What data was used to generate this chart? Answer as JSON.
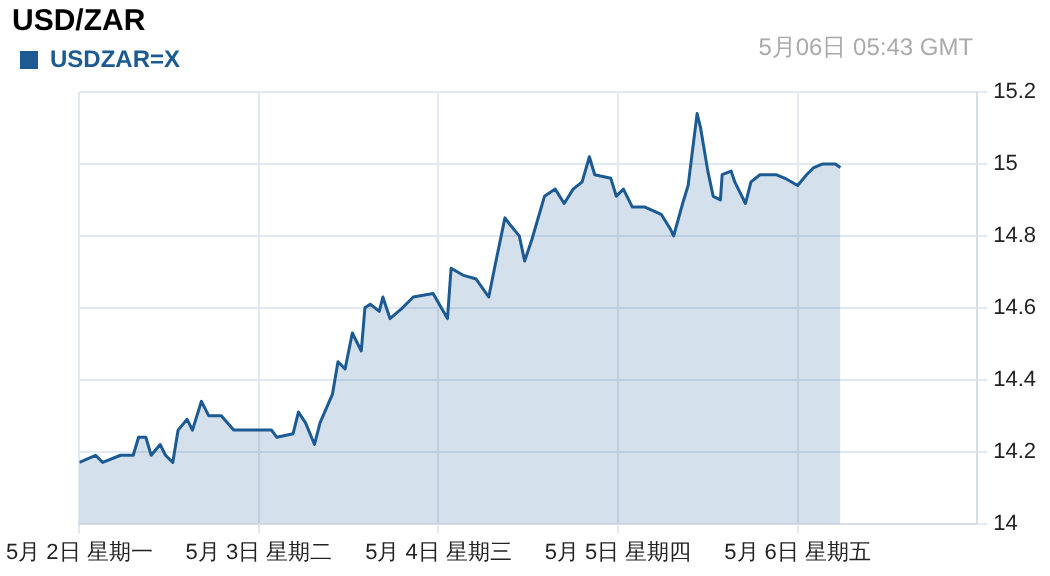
{
  "chart_data": {
    "type": "area",
    "title": "USD/ZAR",
    "annotations": [
      "5月06日 05:43 GMT"
    ],
    "x": [
      "--05-02T00:00",
      "--05-02T02:10",
      "--05-02T03:07",
      "--05-02T05:31",
      "--05-02T07:12",
      "--05-02T07:55",
      "--05-02T08:53",
      "--05-02T09:36",
      "--05-02T10:48",
      "--05-02T11:31",
      "--05-02T12:29",
      "--05-02T13:12",
      "--05-02T14:24",
      "--05-02T15:07",
      "--05-02T16:19",
      "--05-02T17:17",
      "--05-02T18:58",
      "--05-02T20:38",
      "--05-02T23:02",
      "--05-03T01:41",
      "--05-03T02:24",
      "--05-03T04:34",
      "--05-03T05:17",
      "--05-03T06:14",
      "--05-03T07:26",
      "--05-03T08:10",
      "--05-03T09:50",
      "--05-03T10:34",
      "--05-03T11:31",
      "--05-03T12:29",
      "--05-03T13:41",
      "--05-03T14:10",
      "--05-03T14:53",
      "--05-03T16:05",
      "--05-03T16:34",
      "--05-03T17:31",
      "--05-03T19:12",
      "--05-03T20:38",
      "--05-03T23:17",
      "--05-04T01:12",
      "--05-04T01:41",
      "--05-04T03:22",
      "--05-04T05:02",
      "--05-04T06:43",
      "--05-04T07:41",
      "--05-04T08:53",
      "--05-04T09:36",
      "--05-04T10:48",
      "--05-04T11:31",
      "--05-04T12:29",
      "--05-04T14:10",
      "--05-04T15:36",
      "--05-04T16:48",
      "--05-04T18:00",
      "--05-04T19:12",
      "--05-04T20:10",
      "--05-04T20:53",
      "--05-04T23:02",
      "--05-04T23:46",
      "--05-05T00:43",
      "--05-05T01:55",
      "--05-05T03:36",
      "--05-05T05:46",
      "--05-05T06:58",
      "--05-05T07:26",
      "--05-05T08:38",
      "--05-05T09:22",
      "--05-05T10:34",
      "--05-05T11:02",
      "--05-05T12:00",
      "--05-05T12:43",
      "--05-05T13:41",
      "--05-05T13:55",
      "--05-05T15:07",
      "--05-05T15:36",
      "--05-05T17:02",
      "--05-05T17:46",
      "--05-05T18:58",
      "--05-05T21:07",
      "--05-05T22:19",
      "--05-06T00:00",
      "--05-06T01:12",
      "--05-06T02:10",
      "--05-06T03:22",
      "--05-06T05:02",
      "--05-06T05:43"
    ],
    "series": [
      {
        "name": "USDZAR=X",
        "color": "#1c5a93",
        "values": [
          14.17,
          14.19,
          14.17,
          14.19,
          14.19,
          14.24,
          14.24,
          14.19,
          14.22,
          14.19,
          14.17,
          14.26,
          14.29,
          14.26,
          14.34,
          14.3,
          14.3,
          14.26,
          14.26,
          14.26,
          14.24,
          14.25,
          14.31,
          14.28,
          14.22,
          14.28,
          14.36,
          14.45,
          14.43,
          14.53,
          14.48,
          14.6,
          14.61,
          14.59,
          14.63,
          14.57,
          14.6,
          14.63,
          14.64,
          14.57,
          14.71,
          14.69,
          14.68,
          14.63,
          14.73,
          14.85,
          14.83,
          14.8,
          14.73,
          14.79,
          14.91,
          14.93,
          14.89,
          14.93,
          14.95,
          15.02,
          14.97,
          14.96,
          14.91,
          14.93,
          14.88,
          14.88,
          14.86,
          14.82,
          14.8,
          14.89,
          14.94,
          15.14,
          15.1,
          14.98,
          14.91,
          14.9,
          14.97,
          14.98,
          14.95,
          14.89,
          14.95,
          14.97,
          14.97,
          14.96,
          14.94,
          14.97,
          14.99,
          15.0,
          15.0,
          14.99
        ]
      }
    ],
    "xlim": [
      "--05-02",
      "--05-07"
    ],
    "xticks": [
      {
        "value": "--05-02",
        "label": "5月 2日 星期一"
      },
      {
        "value": "--05-03",
        "label": "5月 3日 星期二"
      },
      {
        "value": "--05-04",
        "label": "5月 4日 星期三"
      },
      {
        "value": "--05-05",
        "label": "5月 5日 星期四"
      },
      {
        "value": "--05-06",
        "label": "5月 6日 星期五"
      }
    ],
    "ylim": [
      14.0,
      15.2
    ],
    "yticks": [
      14.0,
      14.2,
      14.4,
      14.6,
      14.8,
      15.0,
      15.2
    ],
    "grid": true,
    "legend": "top left",
    "marker": "none",
    "line_style": "solid"
  }
}
